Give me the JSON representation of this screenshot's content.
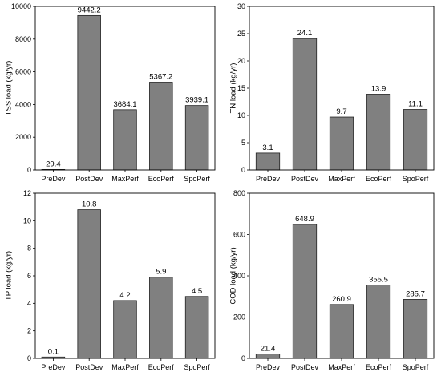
{
  "chart_data": [
    {
      "type": "bar",
      "categories": [
        "PreDev",
        "PostDev",
        "MaxPerf",
        "EcoPerf",
        "SpoPerf"
      ],
      "values": [
        29.4,
        9442.2,
        3684.1,
        5367.2,
        3939.1
      ],
      "value_labels": [
        "29.4",
        "9442.2",
        "3684.1",
        "5367.2",
        "3939.1"
      ],
      "title": "",
      "xlabel": "",
      "ylabel": "TSS load (kg/yr)",
      "ylim": [
        0,
        10000
      ],
      "yticks": [
        0,
        2000,
        4000,
        6000,
        8000,
        10000
      ],
      "ytick_labels": [
        "0",
        "2000",
        "4000",
        "6000",
        "8000",
        "10000"
      ],
      "bar_color": "#808080",
      "grid": false
    },
    {
      "type": "bar",
      "categories": [
        "PreDev",
        "PostDev",
        "MaxPerf",
        "EcoPerf",
        "SpoPerf"
      ],
      "values": [
        3.1,
        24.1,
        9.7,
        13.9,
        11.1
      ],
      "value_labels": [
        "3.1",
        "24.1",
        "9.7",
        "13.9",
        "11.1"
      ],
      "title": "",
      "xlabel": "",
      "ylabel": "TN load (kg/yr)",
      "ylim": [
        0,
        30
      ],
      "yticks": [
        0,
        5,
        10,
        15,
        20,
        25,
        30
      ],
      "ytick_labels": [
        "0",
        "5",
        "10",
        "15",
        "20",
        "25",
        "30"
      ],
      "bar_color": "#808080",
      "grid": false
    },
    {
      "type": "bar",
      "categories": [
        "PreDev",
        "PostDev",
        "MaxPerf",
        "EcoPerf",
        "SpoPerf"
      ],
      "values": [
        0.1,
        10.8,
        4.2,
        5.9,
        4.5
      ],
      "value_labels": [
        "0.1",
        "10.8",
        "4.2",
        "5.9",
        "4.5"
      ],
      "title": "",
      "xlabel": "",
      "ylabel": "TP load (kg/yr)",
      "ylim": [
        0,
        12
      ],
      "yticks": [
        0,
        2,
        4,
        6,
        8,
        10,
        12
      ],
      "ytick_labels": [
        "0",
        "2",
        "4",
        "6",
        "8",
        "10",
        "12"
      ],
      "bar_color": "#808080",
      "grid": false
    },
    {
      "type": "bar",
      "categories": [
        "PreDev",
        "PostDev",
        "MaxPerf",
        "EcoPerf",
        "SpoPerf"
      ],
      "values": [
        21.4,
        648.9,
        260.9,
        355.5,
        285.7
      ],
      "value_labels": [
        "21.4",
        "648.9",
        "260.9",
        "355.5",
        "285.7"
      ],
      "title": "",
      "xlabel": "",
      "ylabel": "COD load (kg/yr)",
      "ylim": [
        0,
        800
      ],
      "yticks": [
        0,
        200,
        400,
        600,
        800
      ],
      "ytick_labels": [
        "0",
        "200",
        "400",
        "600",
        "800"
      ],
      "bar_color": "#808080",
      "grid": false
    }
  ]
}
